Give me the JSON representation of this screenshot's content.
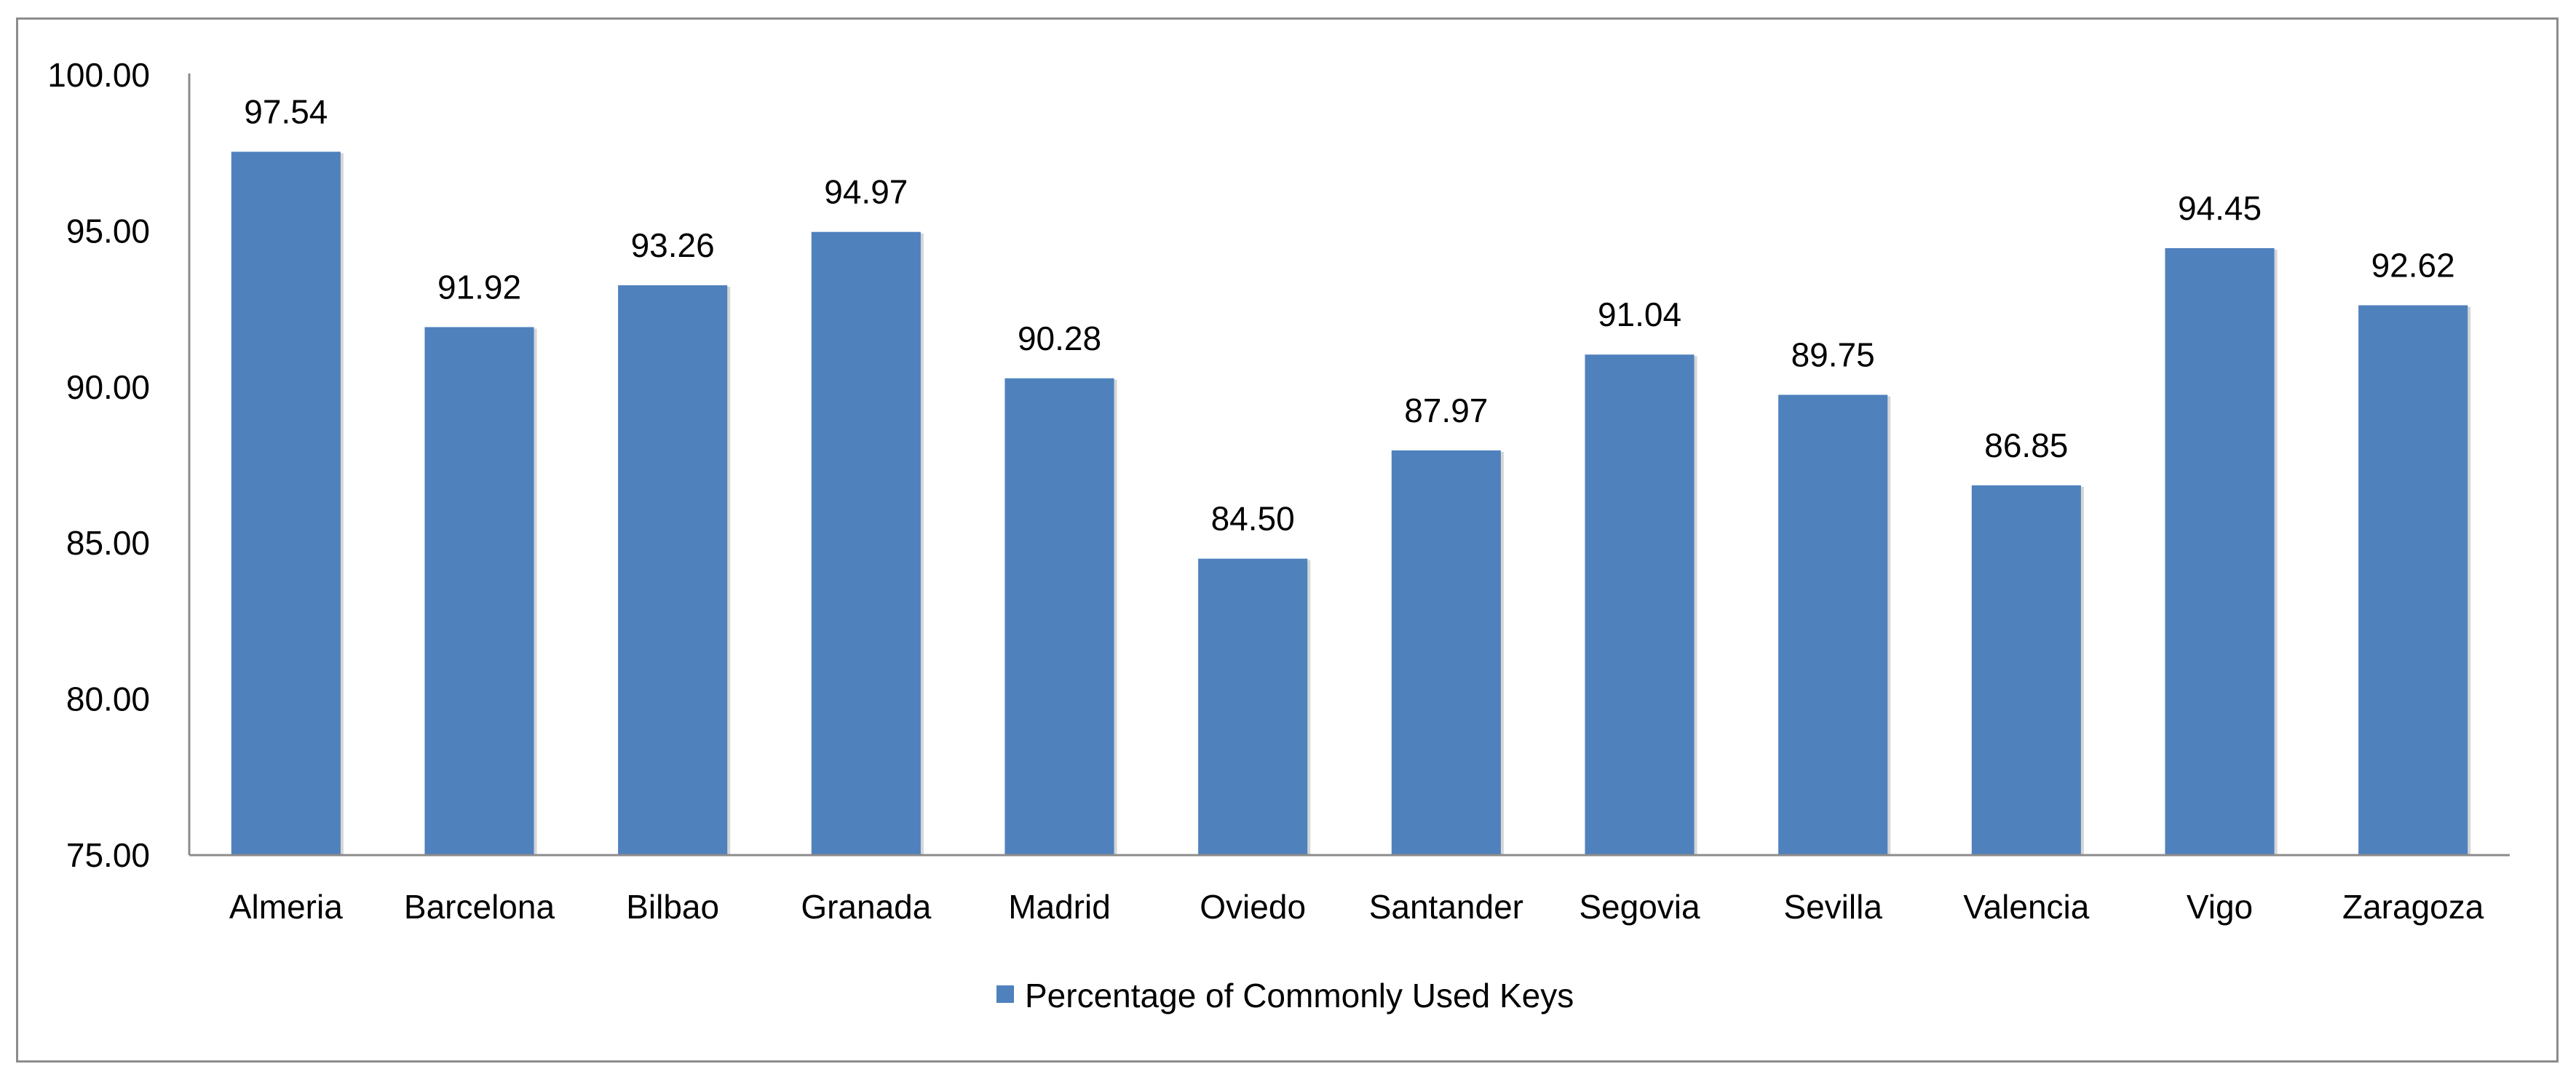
{
  "chart_data": {
    "type": "bar",
    "title": "",
    "xlabel": "",
    "ylabel": "",
    "categories": [
      "Almeria",
      "Barcelona",
      "Bilbao",
      "Granada",
      "Madrid",
      "Oviedo",
      "Santander",
      "Segovia",
      "Sevilla",
      "Valencia",
      "Vigo",
      "Zaragoza"
    ],
    "series": [
      {
        "name": "Percentage of Commonly Used Keys",
        "values": [
          97.54,
          91.92,
          93.26,
          94.97,
          90.28,
          84.5,
          87.97,
          91.04,
          89.75,
          86.85,
          94.45,
          92.62
        ],
        "labels": [
          "97.54",
          "91.92",
          "93.26",
          "94.97",
          "90.28",
          "84.50",
          "87.97",
          "91.04",
          "89.75",
          "86.85",
          "94.45",
          "92.62"
        ],
        "color": "#4f81bd"
      }
    ],
    "ylim": [
      75,
      100
    ],
    "yticks": [
      75,
      80,
      85,
      90,
      95,
      100
    ],
    "ytick_labels": [
      "75.00",
      "80.00",
      "85.00",
      "90.00",
      "95.00",
      "100.00"
    ],
    "grid": false,
    "legend": "bottom"
  },
  "colors": {
    "bar": "#4f81bd",
    "axis": "#8c8c8c",
    "frame": "#8c8c8c"
  }
}
